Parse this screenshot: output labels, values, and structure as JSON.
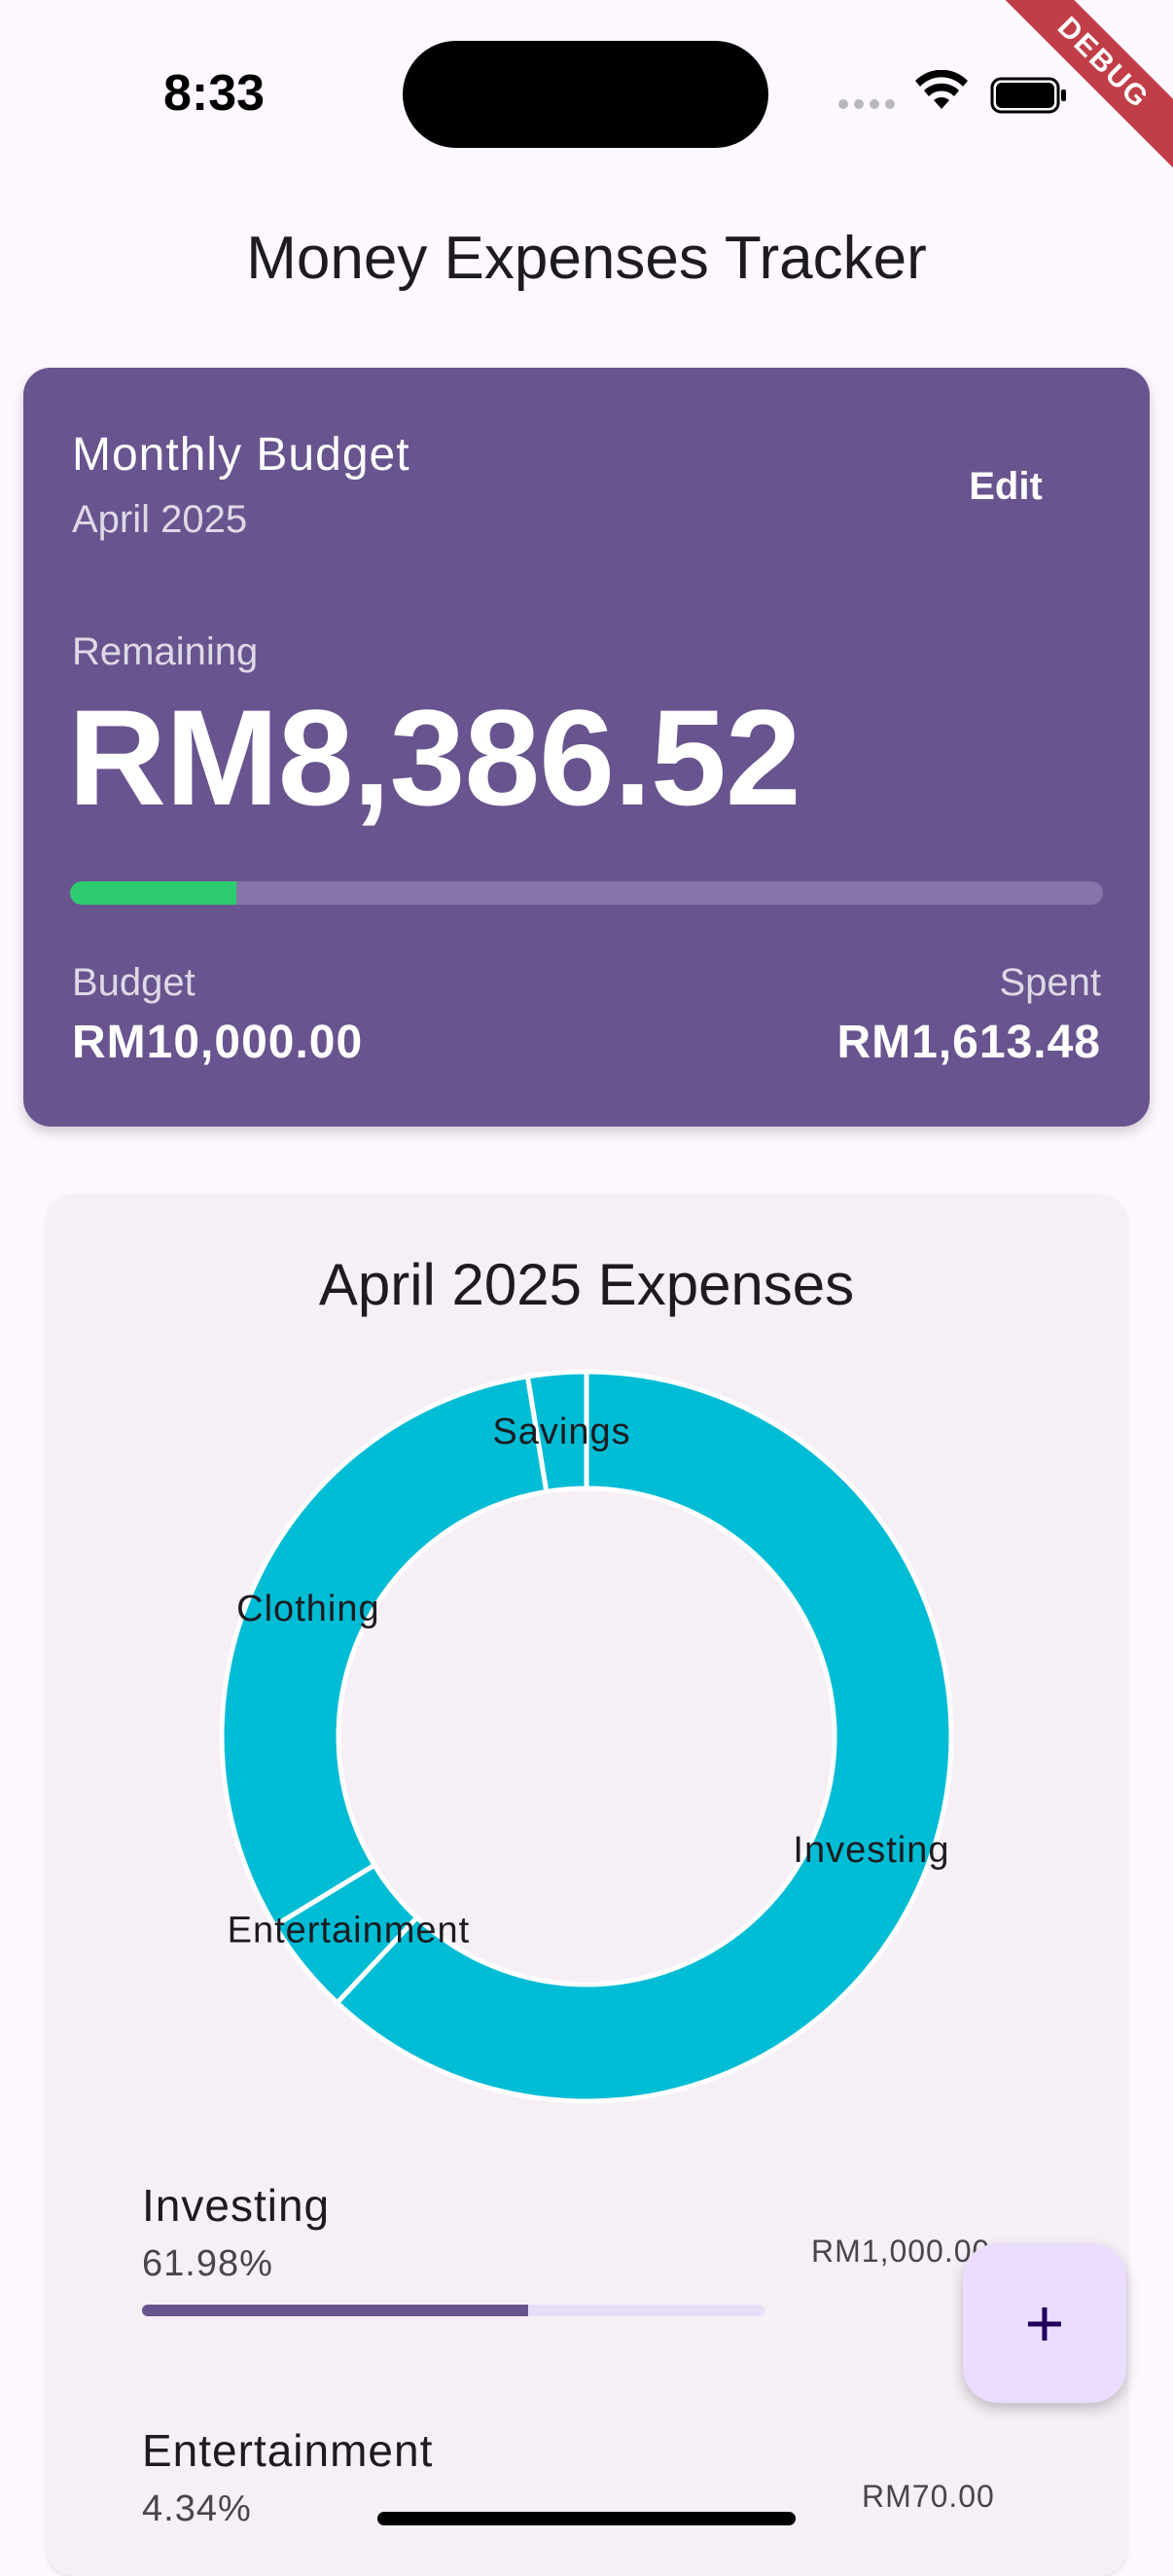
{
  "status_bar": {
    "time": "8:33",
    "debug_banner": "DEBUG"
  },
  "app_bar": {
    "title": "Money Expenses Tracker"
  },
  "budget_card": {
    "title": "Monthly Budget",
    "month": "April 2025",
    "edit_label": "Edit",
    "remaining_label": "Remaining",
    "remaining_value": "RM8,386.52",
    "spent_fraction": 0.1613,
    "budget_label": "Budget",
    "budget_value": "RM10,000.00",
    "spent_label": "Spent",
    "spent_value": "RM1,613.48",
    "progress_color": "#2ecc71",
    "card_color": "#68548e"
  },
  "expenses_card": {
    "title": "April 2025 Expenses",
    "slice_color": "#00bcd4"
  },
  "chart_data": {
    "type": "pie",
    "donut": true,
    "categories": [
      "Investing",
      "Entertainment",
      "Clothing",
      "Savings"
    ],
    "values": [
      61.98,
      4.34,
      31.1,
      2.58
    ],
    "unit": "%"
  },
  "category_list": [
    {
      "name": "Investing",
      "percent": "61.98%",
      "amount": "RM1,000.00",
      "fraction": 0.6198
    },
    {
      "name": "Entertainment",
      "percent": "4.34%",
      "amount": "RM70.00",
      "fraction": 0.0434
    }
  ],
  "fab": {
    "icon": "plus-icon",
    "label": "+"
  }
}
